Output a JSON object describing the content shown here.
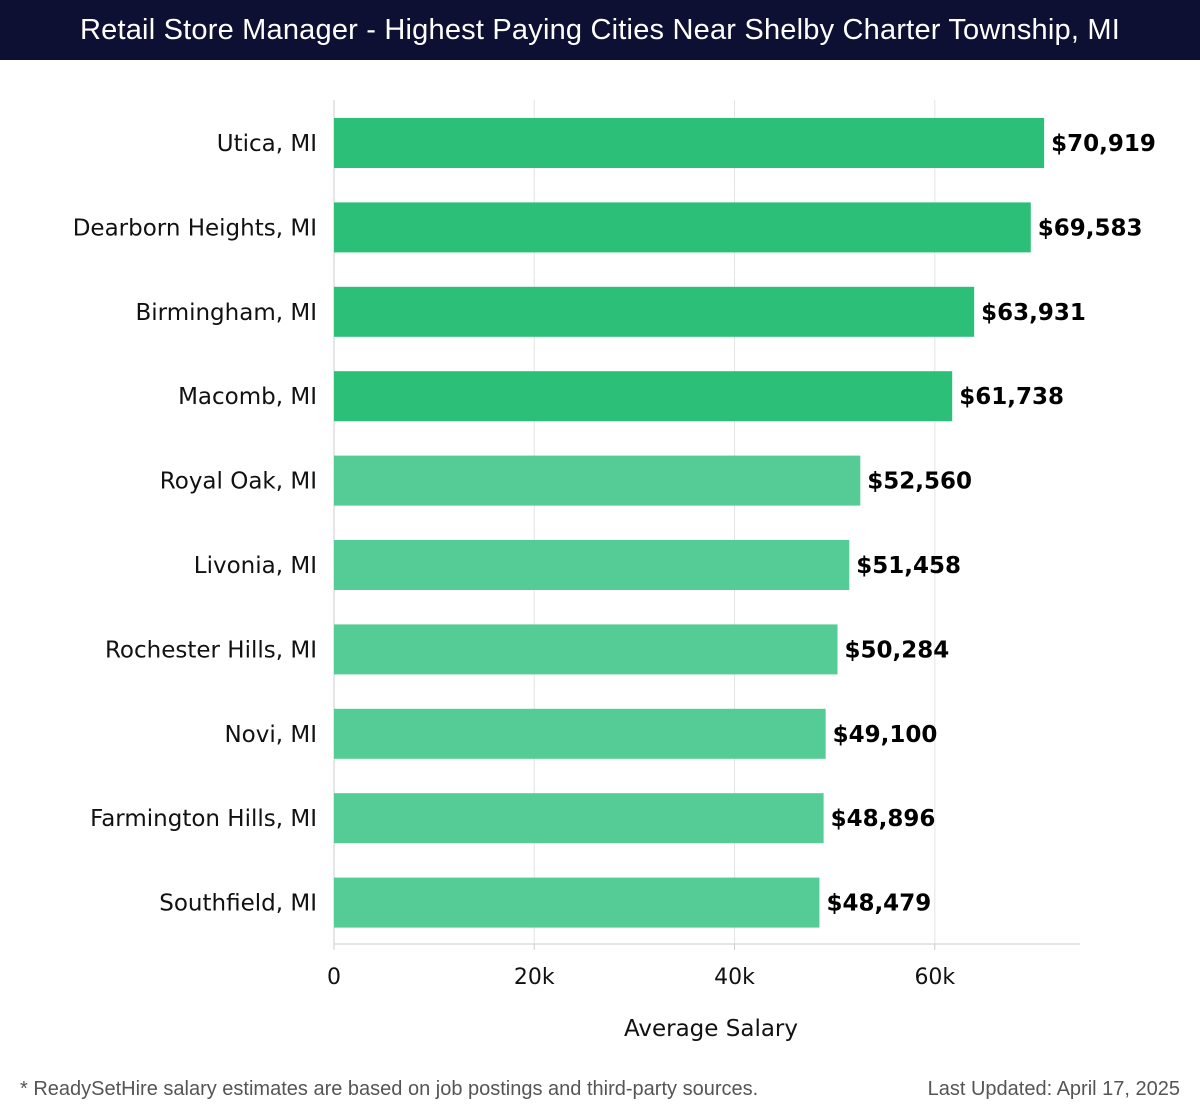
{
  "header": {
    "title": "Retail Store Manager - Highest Paying Cities Near Shelby Charter Township, MI"
  },
  "chart_data": {
    "type": "bar",
    "orientation": "horizontal",
    "categories": [
      "Utica, MI",
      "Dearborn Heights, MI",
      "Birmingham, MI",
      "Macomb, MI",
      "Royal Oak, MI",
      "Livonia, MI",
      "Rochester Hills, MI",
      "Novi, MI",
      "Farmington Hills, MI",
      "Southfield, MI"
    ],
    "values": [
      70919,
      69583,
      63931,
      61738,
      52560,
      51458,
      50284,
      49100,
      48896,
      48479
    ],
    "value_labels": [
      "$70,919",
      "$69,583",
      "$63,931",
      "$61,738",
      "$52,560",
      "$51,458",
      "$50,284",
      "$49,100",
      "$48,896",
      "$48,479"
    ],
    "xlabel": "Average Salary",
    "ylabel": "",
    "xlim": [
      0,
      74500
    ],
    "xticks": [
      0,
      20000,
      40000,
      60000
    ],
    "xtick_labels": [
      "0",
      "20k",
      "40k",
      "60k"
    ],
    "grid": true,
    "colors": {
      "top": "#2bbf78",
      "rest": "#55cc95",
      "grid": "#e3e3e3",
      "axis": "#cccccc"
    }
  },
  "footer": {
    "note": "* ReadySetHire salary estimates are based on job postings and third-party sources.",
    "updated": "Last Updated: April 17, 2025"
  }
}
